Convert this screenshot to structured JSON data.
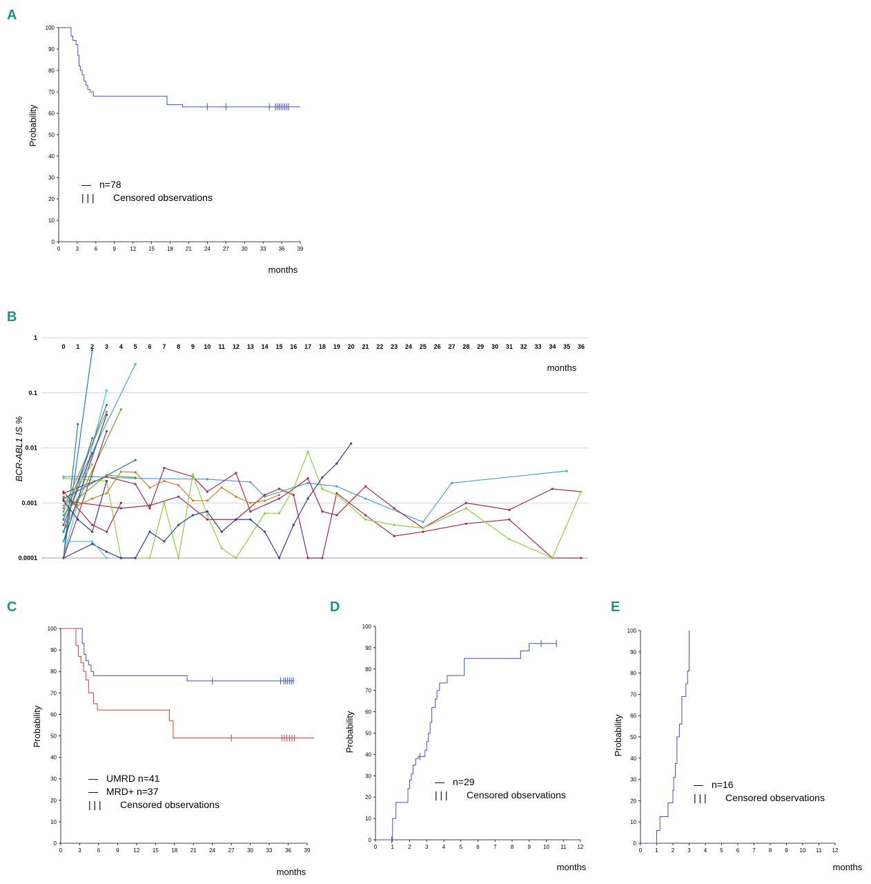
{
  "colors": {
    "blue": "#3d4fd6",
    "red": "#e8352e",
    "grid": "#c8c8c8",
    "panel_label": "#1f8f8f"
  },
  "chart_data": [
    {
      "id": "A",
      "panel": "A",
      "type": "line",
      "xlabel": "months",
      "ylabel": "Probability",
      "xlim": [
        0,
        39
      ],
      "ylim": [
        0,
        100
      ],
      "xticks": [
        "0",
        "3",
        "6",
        "9",
        "12",
        "15",
        "18",
        "21",
        "24",
        "27",
        "30",
        "33",
        "36",
        "39"
      ],
      "yticks": [
        "0",
        "10",
        "20",
        "30",
        "40",
        "50",
        "60",
        "70",
        "80",
        "90",
        "100"
      ],
      "legend": [
        {
          "symbol": "—",
          "text": "n=78"
        },
        {
          "symbol": "| | |",
          "text": "Censored observations"
        }
      ],
      "series": [
        {
          "color": "#3d4fd6",
          "x": [
            0,
            1.9,
            2.0,
            2.3,
            2.8,
            3.1,
            3.3,
            3.5,
            3.8,
            4.1,
            4.4,
            4.7,
            5.1,
            5.6,
            17.0,
            17.5,
            20.0,
            39.0
          ],
          "y": [
            100,
            100,
            96,
            94,
            92,
            87,
            82,
            80,
            78,
            75,
            73,
            71,
            70,
            68,
            68,
            64,
            63,
            63
          ],
          "censored": [
            24,
            27,
            34,
            35,
            35.3,
            35.6,
            35.9,
            36.2,
            36.5,
            36.8,
            37.1
          ]
        }
      ]
    },
    {
      "id": "B",
      "panel": "B",
      "type": "line",
      "ylabel": "BCR-ABL1 IS %",
      "xlabel": "months",
      "yscale": "log",
      "ylim": [
        0.0001,
        1
      ],
      "yticks": [
        "1",
        "0.1",
        "0.01",
        "0.001",
        "0.0001"
      ],
      "xticks": [
        "0",
        "1",
        "2",
        "3",
        "4",
        "5",
        "6",
        "7",
        "8",
        "9",
        "10",
        "11",
        "12",
        "13",
        "14",
        "15",
        "16",
        "17",
        "18",
        "19",
        "20",
        "21",
        "22",
        "23",
        "24",
        "25",
        "26",
        "27",
        "28",
        "29",
        "30",
        "31",
        "32",
        "33",
        "34",
        "35",
        "36"
      ],
      "series": [
        {
          "color": "#4a9fd8",
          "x": [
            0,
            2,
            5,
            10,
            13,
            14,
            17,
            19,
            21,
            25,
            27,
            35
          ],
          "y": [
            0.003,
            0.003,
            0.0028,
            0.0027,
            0.0024,
            0.0013,
            0.0023,
            0.002,
            0.0012,
            0.00045,
            0.0023,
            0.0038
          ]
        },
        {
          "color": "#a3294f",
          "x": [
            0,
            3,
            5,
            6,
            7,
            9,
            10,
            12,
            13,
            15,
            16,
            17,
            18,
            19,
            21,
            23,
            25,
            28,
            31,
            34,
            36
          ],
          "y": [
            0.0015,
            0.003,
            0.0022,
            0.0008,
            0.0043,
            0.003,
            0.0016,
            0.0035,
            0.0007,
            0.0012,
            0.0018,
            0.0028,
            0.0007,
            0.0006,
            0.002,
            0.0008,
            0.00035,
            0.001,
            0.00075,
            0.0018,
            0.0016
          ]
        },
        {
          "color": "#a3294f",
          "x": [
            0,
            4,
            6,
            8,
            10,
            12,
            14,
            15,
            16,
            17,
            18,
            19,
            21,
            23,
            25,
            28,
            31,
            34,
            36
          ],
          "y": [
            0.0011,
            0.0008,
            0.0009,
            0.0013,
            0.0005,
            0.0005,
            0.0014,
            0.0018,
            0.0014,
            0.0001,
            0.0001,
            0.0015,
            0.0006,
            0.00025,
            0.0003,
            0.00042,
            0.0005,
            0.0001,
            0.0001
          ]
        },
        {
          "color": "#8fcf3a",
          "x": [
            0,
            3,
            4,
            5,
            6,
            7,
            8,
            9,
            10,
            11,
            12,
            14,
            15,
            16,
            17,
            18,
            19,
            21,
            23,
            25,
            28,
            31,
            34,
            36
          ],
          "y": [
            0.0028,
            0.0025,
            0.0001,
            0.0001,
            0.0001,
            0.001,
            0.0001,
            0.0033,
            0.0006,
            0.00015,
            0.0001,
            0.00065,
            0.00065,
            0.0018,
            0.0085,
            0.0018,
            0.0014,
            0.0005,
            0.0004,
            0.00035,
            0.0008,
            0.00022,
            0.0001,
            0.0016
          ]
        },
        {
          "color": "#2e3a9a",
          "x": [
            0,
            2,
            3,
            4,
            5,
            6,
            7,
            8,
            9,
            10,
            11,
            12,
            13,
            14,
            15,
            16,
            17,
            18,
            19,
            20
          ],
          "y": [
            0.0001,
            0.00018,
            0.00013,
            0.0001,
            0.0001,
            0.0003,
            0.0002,
            0.0004,
            0.0006,
            0.0007,
            0.0003,
            0.0005,
            0.0005,
            0.0003,
            0.0001,
            0.0004,
            0.0012,
            0.0029,
            0.0052,
            0.012
          ]
        },
        {
          "color": "#c6822a",
          "x": [
            0,
            1,
            2,
            3,
            4,
            5,
            6,
            7,
            8,
            9,
            10,
            11,
            12,
            13,
            14,
            15
          ],
          "y": [
            0.0013,
            0.0009,
            0.0012,
            0.0015,
            0.0037,
            0.0036,
            0.0019,
            0.0025,
            0.0021,
            0.0011,
            0.0011,
            0.0019,
            0.0013,
            0.001,
            0.0011,
            0.0014
          ]
        },
        {
          "color": "#1f7ab8",
          "x": [
            0,
            1
          ],
          "y": [
            0.0001,
            0.027
          ]
        },
        {
          "color": "#1f7ab8",
          "x": [
            0,
            2
          ],
          "y": [
            0.0001,
            0.6
          ]
        },
        {
          "color": "#48c8d6",
          "x": [
            0,
            3
          ],
          "y": [
            0.0001,
            0.11
          ]
        },
        {
          "color": "#3bb0c9",
          "x": [
            0,
            5
          ],
          "y": [
            0.0007,
            0.33
          ]
        },
        {
          "color": "#1f7ab8",
          "x": [
            0,
            3
          ],
          "y": [
            0.0005,
            0.06
          ]
        },
        {
          "color": "#6aa32a",
          "x": [
            0,
            4
          ],
          "y": [
            0.0003,
            0.05
          ]
        },
        {
          "color": "#2e3a9a",
          "x": [
            0,
            3
          ],
          "y": [
            0.0002,
            0.04
          ]
        },
        {
          "color": "#c6822a",
          "x": [
            0,
            3
          ],
          "y": [
            0.0008,
            0.045
          ]
        },
        {
          "color": "#a3294f",
          "x": [
            0,
            3
          ],
          "y": [
            0.0001,
            0.02
          ]
        },
        {
          "color": "#1f7ab8",
          "x": [
            0,
            2
          ],
          "y": [
            0.0003,
            0.015
          ]
        },
        {
          "color": "#a3294f",
          "x": [
            0,
            2
          ],
          "y": [
            0.0004,
            0.008
          ]
        },
        {
          "color": "#8fcf3a",
          "x": [
            0,
            2
          ],
          "y": [
            0.0009,
            0.005
          ]
        },
        {
          "color": "#1f7ab8",
          "x": [
            0,
            5
          ],
          "y": [
            0.0012,
            0.006
          ]
        },
        {
          "color": "#48c8d6",
          "x": [
            0,
            2,
            3
          ],
          "y": [
            0.0002,
            0.0002,
            0.0001
          ]
        },
        {
          "color": "#a3294f",
          "x": [
            0,
            2,
            3,
            4
          ],
          "y": [
            0.0016,
            0.0004,
            0.0003,
            0.001
          ]
        },
        {
          "color": "#6aa32a",
          "x": [
            0,
            1,
            3,
            5
          ],
          "y": [
            0.0006,
            0.0012,
            0.0032,
            0.0029
          ]
        },
        {
          "color": "#2e3a9a",
          "x": [
            0,
            1,
            2,
            3
          ],
          "y": [
            0.0011,
            0.0005,
            0.0003,
            0.0025
          ]
        }
      ]
    },
    {
      "id": "C",
      "panel": "C",
      "type": "line",
      "xlabel": "months",
      "ylabel": "Probability",
      "xlim": [
        0,
        39
      ],
      "ylim": [
        0,
        100
      ],
      "xticks": [
        "0",
        "3",
        "6",
        "9",
        "12",
        "15",
        "18",
        "21",
        "24",
        "27",
        "30",
        "33",
        "36",
        "39"
      ],
      "yticks": [
        "0",
        "10",
        "20",
        "30",
        "40",
        "50",
        "60",
        "70",
        "80",
        "90",
        "100"
      ],
      "legend": [
        {
          "symbol": "—",
          "symbol_color": "#000000",
          "text": "UMRD n=41"
        },
        {
          "symbol": "—",
          "symbol_color": "#e8352e",
          "text": "MRD+  n=37"
        },
        {
          "symbol": "| | |",
          "symbol_color": "#000000",
          "text": "Censored observations"
        }
      ],
      "series": [
        {
          "name": "UMRD n=41",
          "color": "#3d4fd6",
          "x": [
            0,
            3.0,
            3.4,
            3.7,
            4.0,
            4.4,
            4.8,
            5.2,
            20.0,
            37.0
          ],
          "y": [
            100,
            100,
            93,
            88,
            85,
            83,
            80,
            78,
            75.6,
            75.6
          ],
          "censored": [
            24,
            34.8,
            35.3,
            35.6,
            35.9,
            36.2,
            36.5,
            36.8
          ]
        },
        {
          "name": "MRD+  n=37",
          "color": "#e8352e",
          "x": [
            0,
            2.0,
            2.4,
            2.8,
            3.2,
            3.6,
            4.0,
            4.4,
            5.2,
            5.8,
            17.2,
            17.8,
            40.0
          ],
          "y": [
            100,
            100,
            92,
            87,
            84,
            80,
            76,
            70,
            65,
            62,
            57,
            49,
            48.6
          ],
          "censored": [
            27,
            35.0,
            35.4,
            35.8,
            36.2,
            36.6,
            37.0
          ]
        }
      ]
    },
    {
      "id": "D",
      "panel": "D",
      "type": "line",
      "xlabel": "months",
      "ylabel": "Probability",
      "xlim": [
        0,
        12
      ],
      "ylim": [
        0,
        100
      ],
      "xticks": [
        "0",
        "1",
        "2",
        "3",
        "4",
        "5",
        "6",
        "7",
        "8",
        "9",
        "10",
        "11",
        "12"
      ],
      "yticks": [
        "0",
        "10",
        "20",
        "30",
        "40",
        "50",
        "60",
        "70",
        "80",
        "90",
        "100"
      ],
      "legend": [
        {
          "symbol": "—",
          "text": "n=29"
        },
        {
          "symbol": "| | |",
          "text": "Censored observations"
        }
      ],
      "series": [
        {
          "color": "#3d4fd6",
          "x": [
            0,
            0.9,
            1.0,
            1.2,
            1.9,
            2.0,
            2.1,
            2.2,
            2.35,
            2.5,
            2.9,
            3.0,
            3.1,
            3.2,
            3.3,
            3.5,
            3.6,
            3.75,
            4.2,
            5.2,
            8.5,
            9.0,
            9.7,
            10.6
          ],
          "y": [
            0,
            0,
            10,
            17.5,
            24,
            28,
            31,
            35,
            38,
            39,
            42,
            46,
            50,
            55,
            62,
            66,
            70,
            73.5,
            77,
            85,
            88.5,
            92,
            92,
            92
          ],
          "censored": [
            0.95,
            2.6,
            9.7,
            10.6
          ]
        }
      ]
    },
    {
      "id": "E",
      "panel": "E",
      "type": "line",
      "xlabel": "months",
      "ylabel": "Probability",
      "xlim": [
        0,
        12
      ],
      "ylim": [
        0,
        100
      ],
      "xticks": [
        "0",
        "1",
        "2",
        "3",
        "4",
        "5",
        "6",
        "7",
        "8",
        "9",
        "10",
        "11",
        "12"
      ],
      "yticks": [
        "0",
        "10",
        "20",
        "30",
        "40",
        "50",
        "60",
        "70",
        "80",
        "90",
        "100"
      ],
      "legend": [
        {
          "symbol": "—",
          "text": "n=16"
        },
        {
          "symbol": "| | |",
          "text": "Censored observations"
        }
      ],
      "series": [
        {
          "color": "#3d4fd6",
          "x": [
            0,
            0.9,
            1.0,
            1.2,
            1.7,
            2.0,
            2.05,
            2.15,
            2.25,
            2.4,
            2.55,
            2.8,
            2.9,
            3.0
          ],
          "y": [
            0,
            0,
            6,
            12.5,
            19,
            25,
            31,
            37.5,
            50,
            56,
            69,
            75,
            81,
            100
          ],
          "censored": []
        }
      ]
    }
  ]
}
